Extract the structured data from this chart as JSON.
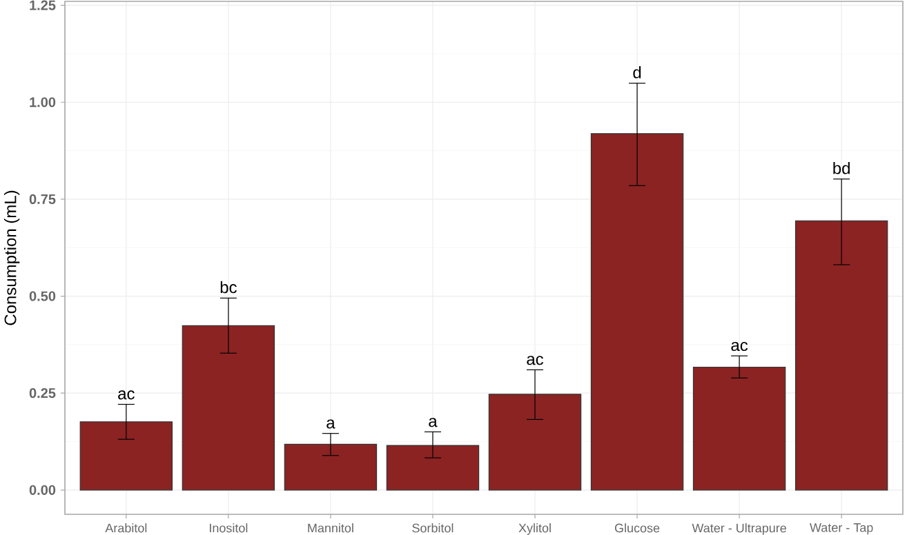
{
  "chart_data": {
    "type": "bar",
    "ylabel": "Consumption (mL)",
    "categories": [
      "Arabitol",
      "Inositol",
      "Mannitol",
      "Sorbitol",
      "Xylitol",
      "Glucose",
      "Water - Ultrapure",
      "Water - Tap"
    ],
    "values": [
      0.176,
      0.424,
      0.118,
      0.115,
      0.247,
      0.919,
      0.317,
      0.694
    ],
    "errors": [
      [
        0.131,
        0.221
      ],
      [
        0.353,
        0.495
      ],
      [
        0.089,
        0.146
      ],
      [
        0.083,
        0.15
      ],
      [
        0.182,
        0.31
      ],
      [
        0.785,
        1.049
      ],
      [
        0.289,
        0.346
      ],
      [
        0.581,
        0.802
      ]
    ],
    "color": "#8b2323",
    "ylim": [
      -0.0625,
      1.26
    ],
    "yticks": [
      {
        "value": 0,
        "label": "0.00"
      },
      {
        "value": 0.25,
        "label": "0.25"
      },
      {
        "value": 0.5,
        "label": "0.50"
      },
      {
        "value": 0.75,
        "label": "0.75"
      },
      {
        "value": 1,
        "label": "1.00"
      },
      {
        "value": 1.25,
        "label": "1.25"
      }
    ],
    "grid": true,
    "annotations": [
      "ac",
      "bc",
      "a",
      "a",
      "ac",
      "d",
      "ac",
      "bd"
    ]
  }
}
